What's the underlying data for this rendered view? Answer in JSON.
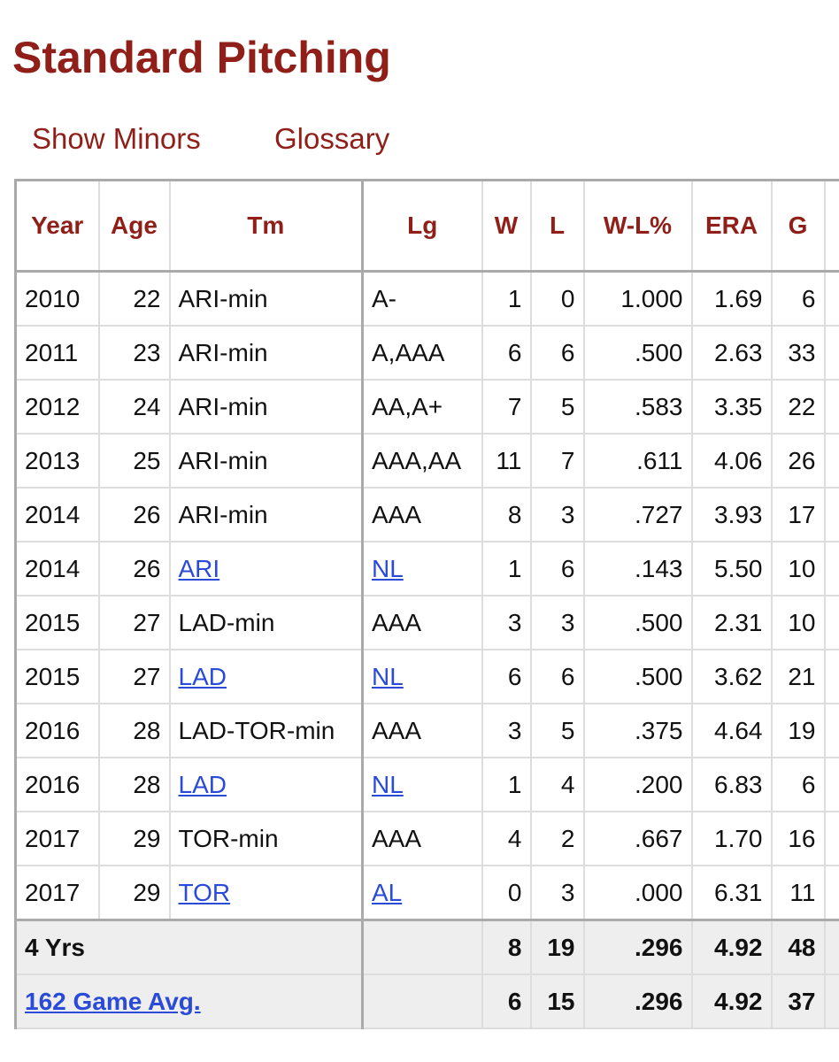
{
  "header": {
    "title": "Standard Pitching",
    "links": [
      "Show Minors",
      "Glossary"
    ]
  },
  "table": {
    "columns": [
      "Year",
      "Age",
      "Tm",
      "Lg",
      "W",
      "L",
      "W-L%",
      "ERA",
      "G"
    ],
    "rows": [
      [
        "2010",
        "22",
        "ARI-min",
        "A-",
        "1",
        "0",
        "1.000",
        "1.69",
        "6"
      ],
      [
        "2011",
        "23",
        "ARI-min",
        "A,AAA",
        "6",
        "6",
        ".500",
        "2.63",
        "33"
      ],
      [
        "2012",
        "24",
        "ARI-min",
        "AA,A+",
        "7",
        "5",
        ".583",
        "3.35",
        "22"
      ],
      [
        "2013",
        "25",
        "ARI-min",
        "AAA,AA",
        "11",
        "7",
        ".611",
        "4.06",
        "26"
      ],
      [
        "2014",
        "26",
        "ARI-min",
        "AAA",
        "8",
        "3",
        ".727",
        "3.93",
        "17"
      ],
      [
        "2014",
        "26",
        "ARI",
        "NL",
        "1",
        "6",
        ".143",
        "5.50",
        "10"
      ],
      [
        "2015",
        "27",
        "LAD-min",
        "AAA",
        "3",
        "3",
        ".500",
        "2.31",
        "10"
      ],
      [
        "2015",
        "27",
        "LAD",
        "NL",
        "6",
        "6",
        ".500",
        "3.62",
        "21"
      ],
      [
        "2016",
        "28",
        "LAD-TOR-min",
        "AAA",
        "3",
        "5",
        ".375",
        "4.64",
        "19"
      ],
      [
        "2016",
        "28",
        "LAD",
        "NL",
        "1",
        "4",
        ".200",
        "6.83",
        "6"
      ],
      [
        "2017",
        "29",
        "TOR-min",
        "AAA",
        "4",
        "2",
        ".667",
        "1.70",
        "16"
      ],
      [
        "2017",
        "29",
        "TOR",
        "AL",
        "0",
        "3",
        ".000",
        "6.31",
        "11"
      ]
    ],
    "footer": [
      {
        "label": "4 Yrs",
        "W": "8",
        "L": "19",
        "W-L%": ".296",
        "ERA": "4.92",
        "G": "48"
      },
      {
        "label": "162 Game Avg.",
        "W": "6",
        "L": "15",
        "W-L%": ".296",
        "ERA": "4.92",
        "G": "37"
      }
    ]
  }
}
